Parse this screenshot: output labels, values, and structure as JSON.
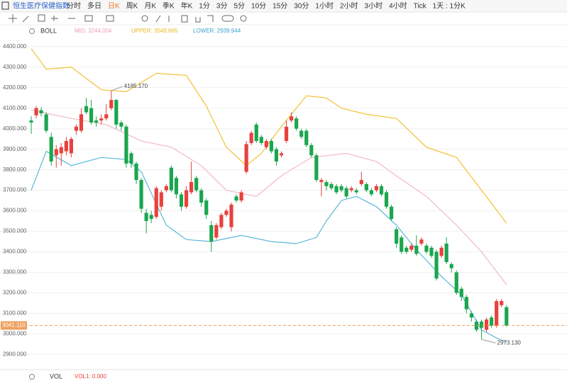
{
  "toolbar": {
    "symbol": "恒生医疗保健指数",
    "periods": [
      "分时",
      "多日",
      "日K",
      "周K",
      "月K",
      "季K",
      "年K",
      "1分",
      "3分",
      "5分",
      "10分",
      "15分",
      "30分",
      "1小时",
      "2小时",
      "3小时",
      "4小时",
      "Tick",
      "1天 : 1分K"
    ],
    "active": "日K"
  },
  "indicator": {
    "name": "BOLL",
    "mid": "MID: 3244.004",
    "upper": "UPPER: 3549.665",
    "lower": "LOWER: 2939.944"
  },
  "volume": {
    "name": "VOL",
    "vol1": "VOL1: 0.000"
  },
  "chart_data": {
    "type": "candlestick",
    "ylim": [
      2860,
      4420
    ],
    "yticks": [
      {
        "value": 2900,
        "label": "2900.000"
      },
      {
        "value": 3000,
        "label": "3000.000"
      },
      {
        "value": 3100,
        "label": "3100.000"
      },
      {
        "value": 3200,
        "label": "3200.000"
      },
      {
        "value": 3300,
        "label": "3300.000"
      },
      {
        "value": 3400,
        "label": "3400.000"
      },
      {
        "value": 3500,
        "label": "3500.000"
      },
      {
        "value": 3600,
        "label": "3600.000"
      },
      {
        "value": 3700,
        "label": "3700.000"
      },
      {
        "value": 3800,
        "label": "3800.000"
      },
      {
        "value": 3900,
        "label": "3900.000"
      },
      {
        "value": 4000,
        "label": "4000.000"
      },
      {
        "value": 4100,
        "label": "4100.000"
      },
      {
        "value": 4200,
        "label": "4200.000"
      },
      {
        "value": 4300,
        "label": "4300.000"
      },
      {
        "value": 4400,
        "label": "4400.000"
      }
    ],
    "grid": true,
    "up_color": "#e8413e",
    "down_color": "#1ba64e",
    "open": [
      4040,
      4065,
      4090,
      4070,
      3960,
      3870,
      3880,
      3890,
      3880,
      3990,
      3990,
      4110,
      4100,
      4040,
      4040,
      4050,
      4100,
      4140,
      4030,
      4010,
      3880,
      3830,
      3750,
      3590,
      3580,
      3570,
      3620,
      3700,
      3810,
      3760,
      3680,
      3620,
      3690,
      3760,
      3700,
      3650,
      3530,
      3470,
      3520,
      3580,
      3520,
      3670,
      3650,
      3790,
      3930,
      4020,
      3960,
      3910,
      3940,
      3900,
      3870,
      3940,
      4040,
      4050,
      3990,
      3990,
      3920,
      3870,
      3740,
      3740,
      3730,
      3720,
      3720,
      3710,
      3700,
      3700,
      3730,
      3730,
      3700,
      3700,
      3720,
      3690,
      3620,
      3510,
      3470,
      3420,
      3410,
      3430,
      3440,
      3430,
      3420,
      3400,
      3380,
      3440,
      3340,
      3300,
      3220,
      3180,
      3100,
      3060,
      3060,
      3020,
      3080,
      3040,
      3140,
      3130
    ],
    "high": [
      4060,
      4110,
      4105,
      4080,
      3980,
      3920,
      3930,
      3960,
      3960,
      4020,
      4100,
      4150,
      4140,
      4060,
      4070,
      4120,
      4185.17,
      4145,
      4040,
      4020,
      3890,
      3840,
      3760,
      3610,
      3600,
      3720,
      3700,
      3730,
      3820,
      3770,
      3690,
      3720,
      3840,
      3770,
      3710,
      3660,
      3550,
      3540,
      3590,
      3610,
      3640,
      3680,
      3700,
      3940,
      3990,
      4030,
      3970,
      3950,
      3950,
      3910,
      3890,
      4040,
      4080,
      4060,
      4000,
      4000,
      3930,
      3880,
      3760,
      3750,
      3740,
      3730,
      3730,
      3720,
      3720,
      3710,
      3790,
      3740,
      3710,
      3730,
      3730,
      3700,
      3630,
      3520,
      3480,
      3430,
      3440,
      3480,
      3470,
      3440,
      3430,
      3410,
      3430,
      3470,
      3350,
      3310,
      3230,
      3190,
      3110,
      3070,
      3070,
      3080,
      3090,
      3170,
      3170,
      3140
    ],
    "low": [
      3975,
      4050,
      4060,
      3980,
      3820,
      3810,
      3820,
      3870,
      3860,
      3970,
      3980,
      4070,
      4020,
      4010,
      4020,
      4040,
      4090,
      4000,
      3990,
      3810,
      3810,
      3730,
      3590,
      3490,
      3540,
      3560,
      3600,
      3690,
      3690,
      3660,
      3600,
      3610,
      3680,
      3690,
      3620,
      3560,
      3400,
      3460,
      3510,
      3570,
      3500,
      3640,
      3640,
      3780,
      3920,
      3930,
      3920,
      3900,
      3880,
      3820,
      3860,
      3930,
      4030,
      3990,
      3950,
      3910,
      3860,
      3740,
      3670,
      3700,
      3700,
      3680,
      3690,
      3660,
      3690,
      3680,
      3720,
      3690,
      3670,
      3690,
      3670,
      3610,
      3550,
      3420,
      3390,
      3390,
      3400,
      3380,
      3430,
      3390,
      3370,
      3260,
      3370,
      3340,
      3300,
      3190,
      3160,
      3100,
      3060,
      3010,
      2973.13,
      3010,
      3030,
      3030,
      3130,
      3035
    ],
    "close": [
      4030,
      4100,
      4075,
      3990,
      3840,
      3900,
      3910,
      3940,
      3950,
      4010,
      4070,
      4080,
      4030,
      4030,
      4050,
      4070,
      4140,
      4020,
      4010,
      3830,
      3830,
      3750,
      3610,
      3550,
      3560,
      3710,
      3690,
      3720,
      3700,
      3680,
      3620,
      3700,
      3740,
      3700,
      3640,
      3580,
      3450,
      3530,
      3580,
      3600,
      3630,
      3650,
      3690,
      3925,
      3980,
      3940,
      3930,
      3940,
      3890,
      3840,
      3880,
      4010,
      4060,
      4000,
      3960,
      3920,
      3870,
      3750,
      3750,
      3720,
      3710,
      3690,
      3700,
      3670,
      3710,
      3690,
      3750,
      3700,
      3680,
      3720,
      3680,
      3620,
      3560,
      3440,
      3400,
      3400,
      3430,
      3390,
      3460,
      3400,
      3380,
      3270,
      3420,
      3350,
      3320,
      3200,
      3180,
      3120,
      3080,
      3020,
      3030,
      3070,
      3040,
      3160,
      3160,
      3041.11
    ],
    "high_label": "4185.170",
    "low_label": "2973.130",
    "last_label": "3041.110",
    "last_color": "#f0a060",
    "bands": [
      {
        "name": "UPPER",
        "color": "#f2c230",
        "x": [
          0,
          3,
          8,
          14,
          19,
          25,
          31,
          35,
          39,
          43,
          46,
          50,
          55,
          59,
          62,
          67,
          73,
          79,
          85,
          90,
          95
        ],
        "values": [
          4390,
          4290,
          4300,
          4190,
          4180,
          4270,
          4260,
          4110,
          3910,
          3820,
          3880,
          4010,
          4160,
          4150,
          4100,
          4070,
          4050,
          3910,
          3860,
          3700,
          3540
        ]
      },
      {
        "name": "MID",
        "color": "#f2b8c6",
        "x": [
          0,
          8,
          15,
          22,
          28,
          34,
          39,
          45,
          50,
          56,
          63,
          69,
          73,
          79,
          85,
          90,
          95
        ],
        "values": [
          4090,
          4050,
          4020,
          3940,
          3910,
          3820,
          3700,
          3670,
          3770,
          3860,
          3880,
          3840,
          3770,
          3670,
          3530,
          3400,
          3240
        ]
      },
      {
        "name": "LOWER",
        "color": "#5ab8d8",
        "x": [
          0,
          3,
          8,
          14,
          19,
          22,
          27,
          31,
          36,
          42,
          48,
          53,
          57,
          59,
          62,
          65,
          69,
          73,
          77,
          82,
          86,
          90,
          93,
          95
        ],
        "values": [
          3700,
          3890,
          3820,
          3860,
          3850,
          3790,
          3530,
          3460,
          3450,
          3480,
          3450,
          3440,
          3470,
          3550,
          3650,
          3670,
          3620,
          3530,
          3410,
          3280,
          3190,
          3020,
          2980,
          2960
        ]
      }
    ]
  }
}
